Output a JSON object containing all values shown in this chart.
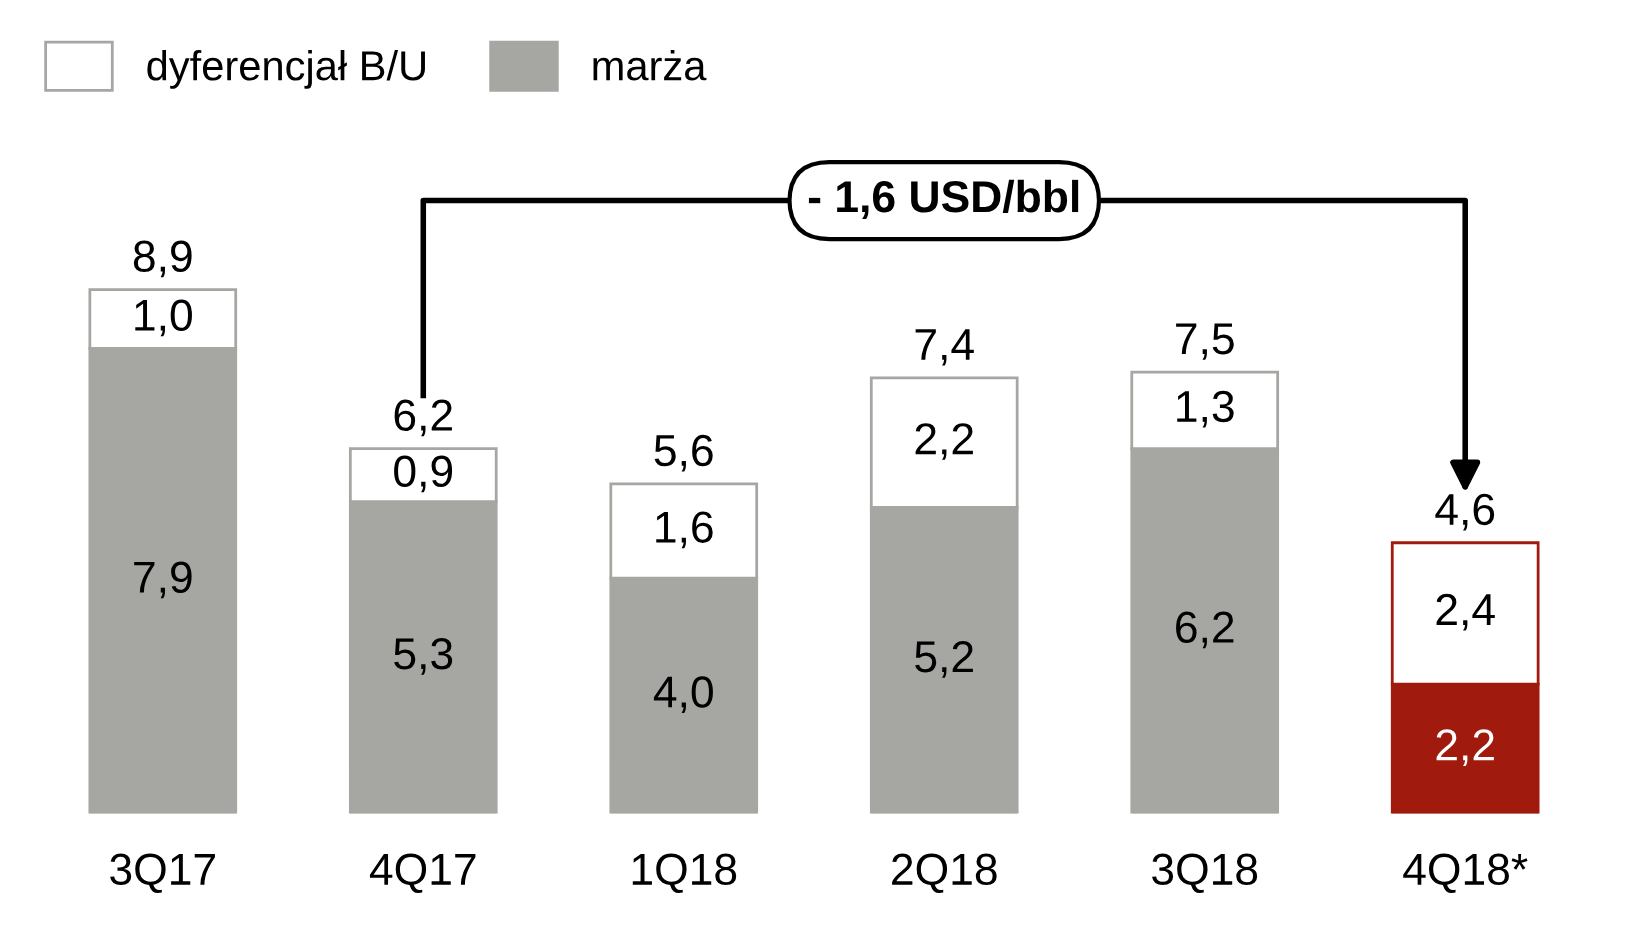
{
  "chart_data": {
    "type": "bar",
    "stacked": true,
    "legend": "top left",
    "grid": false,
    "categories": [
      "3Q17",
      "4Q17",
      "1Q18",
      "2Q18",
      "3Q18",
      "4Q18*"
    ],
    "series": [
      {
        "name": "marża",
        "color": "#a6a6a2",
        "colors": [
          "#a6a6a2",
          "#a6a6a2",
          "#a6a6a2",
          "#a6a6a2",
          "#a6a6a2",
          "#a01a0d"
        ],
        "values": [
          7.9,
          5.3,
          4.0,
          5.2,
          6.2,
          2.2
        ],
        "value_labels": [
          "7,9",
          "5,3",
          "4,0",
          "5,2",
          "6,2",
          "2,2"
        ]
      },
      {
        "name": "dyferencjał B/U",
        "color": "#ffffff",
        "colors": [
          "#ffffff",
          "#ffffff",
          "#ffffff",
          "#ffffff",
          "#ffffff",
          "#ffffff"
        ],
        "values": [
          1.0,
          0.9,
          1.6,
          2.2,
          1.3,
          2.4
        ],
        "value_labels": [
          "1,0",
          "0,9",
          "1,6",
          "2,2",
          "1,3",
          "2,4"
        ]
      }
    ],
    "totals": [
      "8,9",
      "6,2",
      "5,6",
      "7,4",
      "7,5",
      "4,6"
    ],
    "annotations": [
      "- 1,6 USD/bbl"
    ]
  }
}
